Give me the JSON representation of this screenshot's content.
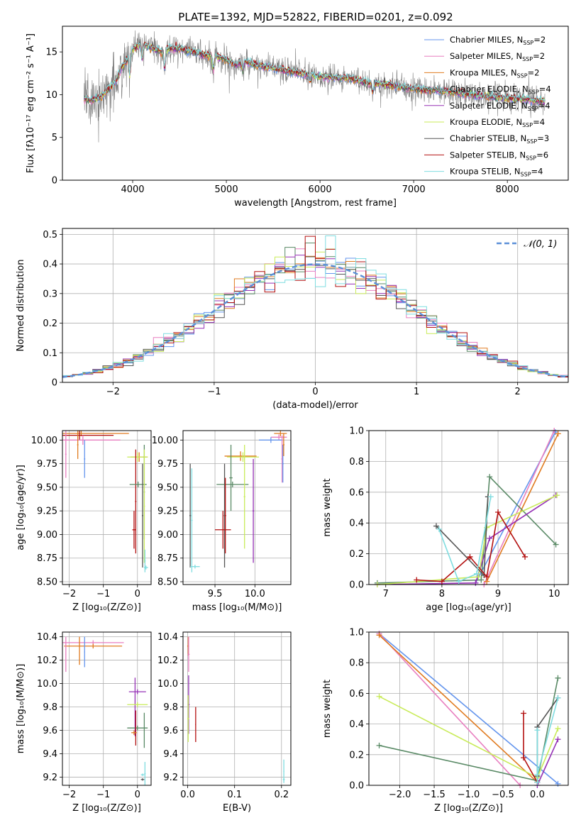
{
  "figure": {
    "title": "PLATE=1392, MJD=52822, FIBERID=0201, z=0.092"
  },
  "colors": {
    "cm": "#6495ed",
    "sm": "#e87fc0",
    "km": "#e07b20",
    "ce": "#5a8a66",
    "se": "#9531b5",
    "ke": "#c9eb5a",
    "cs": "#555555",
    "ss": "#b31010",
    "ks": "#7fdde0",
    "data": "#808080",
    "gauss": "#5b8fd8"
  },
  "chart_data": [
    {
      "id": "spectrum",
      "type": "line",
      "xlabel": "wavelength [Angstrom, rest frame]",
      "ylabel": "Flux [fλ10⁻¹⁷ erg cm⁻² s⁻¹ A⁻¹]",
      "xlim": [
        3250,
        8650
      ],
      "ylim": [
        0,
        18
      ],
      "xticks": [
        4000,
        5000,
        6000,
        7000,
        8000
      ],
      "yticks": [
        0,
        5,
        10,
        15
      ],
      "legend_position": "top-right",
      "grid": false,
      "legend": [
        {
          "key": "cm",
          "lib": "Chabrier MILES, N",
          "n": "2"
        },
        {
          "key": "sm",
          "lib": "Salpeter MILES, N",
          "n": "2"
        },
        {
          "key": "km",
          "lib": "Kroupa MILES, N",
          "n": "2"
        },
        {
          "key": "ce",
          "lib": "Chabrier ELODIE, N",
          "n": "4"
        },
        {
          "key": "se",
          "lib": "Salpeter ELODIE, N",
          "n": "4"
        },
        {
          "key": "ke",
          "lib": "Kroupa ELODIE, N",
          "n": "4"
        },
        {
          "key": "cs",
          "lib": "Chabrier STELIB, N",
          "n": "3"
        },
        {
          "key": "ss",
          "lib": "Salpeter STELIB, N",
          "n": "6"
        },
        {
          "key": "ks",
          "lib": "Kroupa STELIB, N",
          "n": "4"
        }
      ],
      "legend_sub": "SSP",
      "continuum": [
        [
          3480,
          9.6
        ],
        [
          3550,
          9.3
        ],
        [
          3650,
          9.7
        ],
        [
          3750,
          10.7
        ],
        [
          3820,
          11.5
        ],
        [
          3880,
          13.2
        ],
        [
          3950,
          14.2
        ],
        [
          4000,
          15.4
        ],
        [
          4100,
          16.0
        ],
        [
          4200,
          15.5
        ],
        [
          4300,
          15.0
        ],
        [
          4400,
          15.4
        ],
        [
          4500,
          15.4
        ],
        [
          4600,
          15.1
        ],
        [
          4700,
          14.8
        ],
        [
          4800,
          14.6
        ],
        [
          4900,
          14.4
        ],
        [
          5000,
          14.1
        ],
        [
          5100,
          13.5
        ],
        [
          5200,
          13.9
        ],
        [
          5300,
          13.5
        ],
        [
          5500,
          13.1
        ],
        [
          5700,
          12.7
        ],
        [
          5900,
          12.3
        ],
        [
          6100,
          12.0
        ],
        [
          6300,
          11.9
        ],
        [
          6500,
          11.4
        ],
        [
          6700,
          11.2
        ],
        [
          6900,
          10.8
        ],
        [
          7100,
          10.6
        ],
        [
          7300,
          10.4
        ],
        [
          7500,
          10.2
        ],
        [
          7700,
          9.9
        ],
        [
          7900,
          9.7
        ],
        [
          8100,
          9.5
        ],
        [
          8300,
          9.3
        ],
        [
          8400,
          9.2
        ]
      ],
      "dips": [
        [
          3970,
          -2.5
        ],
        [
          4102,
          -2.0
        ],
        [
          4340,
          -2.2
        ],
        [
          4861,
          -1.5
        ],
        [
          5175,
          -1.0
        ],
        [
          5893,
          -0.8
        ],
        [
          6563,
          -1.0
        ]
      ]
    },
    {
      "id": "residuals",
      "type": "histogram",
      "xlabel": "(data-model)/error",
      "ylabel": "Normed distribution",
      "xlim": [
        -2.5,
        2.5
      ],
      "ylim": [
        0,
        0.52
      ],
      "xticks": [
        -2,
        -1,
        0,
        1,
        2
      ],
      "yticks": [
        0,
        0.1,
        0.2,
        0.3,
        0.4,
        0.5
      ],
      "grid": true,
      "legend_position": "top-right",
      "gaussian_label": "𝒩(0, 1)",
      "bin_width": 0.1
    },
    {
      "id": "age_vs_Z",
      "type": "errorbar",
      "xlabel": "Z [log₁₀(Z/Z⊙)]",
      "ylabel": "age  [log₁₀(age/yr)]",
      "xlim": [
        -2.2,
        0.4
      ],
      "ylim": [
        8.47,
        10.1
      ],
      "xticks": [
        -2,
        -1,
        0
      ],
      "xticklabels": [
        "−2",
        "−1",
        "0"
      ],
      "yticks": [
        8.5,
        8.75,
        9.0,
        9.25,
        9.5,
        9.75,
        10.0
      ],
      "yticklabels": [
        "8.50",
        "8.75",
        "9.00",
        "9.25",
        "9.50",
        "9.75",
        "10.00"
      ],
      "grid": true,
      "points": [
        {
          "c": "km",
          "x": -1.65,
          "xerr": 1.4,
          "y": 10.07,
          "yerr": 0.03
        },
        {
          "c": "ss",
          "x": -1.7,
          "xerr": 1.0,
          "y": 10.05,
          "yerr": 0.05
        },
        {
          "c": "sm",
          "x": -1.6,
          "xerr": 1.1,
          "y": 10.0,
          "yerr": 0.05
        },
        {
          "c": "sm",
          "x": -2.1,
          "xerr": 0.02,
          "y": 9.85,
          "yerr": 0.25
        },
        {
          "c": "km",
          "x": -1.75,
          "xerr": 0.02,
          "y": 9.95,
          "yerr": 0.15
        },
        {
          "c": "cm",
          "x": -1.55,
          "xerr": 0.02,
          "y": 9.8,
          "yerr": 0.2
        },
        {
          "c": "km",
          "x": 0.05,
          "xerr": 0.25,
          "y": 9.82,
          "yerr": 0.05
        },
        {
          "c": "ke",
          "x": 0.0,
          "xerr": 0.3,
          "y": 9.82,
          "yerr": 0.05
        },
        {
          "c": "ce",
          "x": 0.2,
          "xerr": 0.02,
          "y": 9.45,
          "yerr": 0.5
        },
        {
          "c": "ss",
          "x": -0.05,
          "xerr": 0.02,
          "y": 9.35,
          "yerr": 0.55
        },
        {
          "c": "ss",
          "x": -0.1,
          "xerr": 0.05,
          "y": 9.05,
          "yerr": 0.2
        },
        {
          "c": "ce",
          "x": 0.02,
          "xerr": 0.25,
          "y": 9.53,
          "yerr": 0.03
        },
        {
          "c": "cs",
          "x": 0.15,
          "xerr": 0.02,
          "y": 9.2,
          "yerr": 0.55
        },
        {
          "c": "ke",
          "x": 0.2,
          "xerr": 0.02,
          "y": 9.3,
          "yerr": 0.6
        },
        {
          "c": "ks",
          "x": 0.22,
          "xerr": 0.02,
          "y": 8.72,
          "yerr": 0.12
        },
        {
          "c": "ks",
          "x": 0.25,
          "xerr": 0.06,
          "y": 8.65,
          "yerr": 0.02
        }
      ]
    },
    {
      "id": "age_vs_mass",
      "type": "errorbar",
      "xlabel": "mass [log₁₀(M/M⊙)]",
      "ylabel": "",
      "xlim": [
        9.1,
        10.45
      ],
      "ylim": [
        8.47,
        10.1
      ],
      "xticks": [
        9.5,
        10.0
      ],
      "xticklabels": [
        "9.5",
        "10.0"
      ],
      "yticks": [
        8.5,
        8.75,
        9.0,
        9.25,
        9.5,
        9.75,
        10.0
      ],
      "yticklabels": [
        "8.50",
        "8.75",
        "9.00",
        "9.25",
        "9.50",
        "9.75",
        "10.00"
      ],
      "grid": true,
      "points": [
        {
          "c": "km",
          "x": 10.32,
          "xerr": 0.08,
          "y": 10.07,
          "yerr": 0.03
        },
        {
          "c": "sm",
          "x": 10.3,
          "xerr": 0.1,
          "y": 10.03,
          "yerr": 0.03
        },
        {
          "c": "cm",
          "x": 10.2,
          "xerr": 0.15,
          "y": 10.0,
          "yerr": 0.03
        },
        {
          "c": "sm",
          "x": 10.34,
          "xerr": 0.01,
          "y": 9.8,
          "yerr": 0.25
        },
        {
          "c": "cm",
          "x": 10.35,
          "xerr": 0.01,
          "y": 9.75,
          "yerr": 0.2
        },
        {
          "c": "km",
          "x": 10.36,
          "xerr": 0.01,
          "y": 9.95,
          "yerr": 0.12
        },
        {
          "c": "km",
          "x": 9.82,
          "xerr": 0.2,
          "y": 9.83,
          "yerr": 0.05
        },
        {
          "c": "ke",
          "x": 9.85,
          "xerr": 0.2,
          "y": 9.82,
          "yerr": 0.05
        },
        {
          "c": "ce",
          "x": 9.7,
          "xerr": 0.02,
          "y": 9.6,
          "yerr": 0.35
        },
        {
          "c": "ce",
          "x": 9.72,
          "xerr": 0.2,
          "y": 9.53,
          "yerr": 0.03
        },
        {
          "c": "ke",
          "x": 9.87,
          "xerr": 0.01,
          "y": 9.4,
          "yerr": 0.55
        },
        {
          "c": "se",
          "x": 9.98,
          "xerr": 0.01,
          "y": 9.25,
          "yerr": 0.55
        },
        {
          "c": "cs",
          "x": 9.62,
          "xerr": 0.01,
          "y": 9.2,
          "yerr": 0.55
        },
        {
          "c": "ss",
          "x": 9.6,
          "xerr": 0.1,
          "y": 9.05,
          "yerr": 0.2
        },
        {
          "c": "ss",
          "x": 9.63,
          "xerr": 0.01,
          "y": 9.2,
          "yerr": 0.4
        },
        {
          "c": "cs",
          "x": 9.19,
          "xerr": 0.01,
          "y": 9.2,
          "yerr": 0.55
        },
        {
          "c": "ks",
          "x": 9.21,
          "xerr": 0.01,
          "y": 9.15,
          "yerr": 0.55
        },
        {
          "c": "ks",
          "x": 9.25,
          "xerr": 0.06,
          "y": 8.66,
          "yerr": 0.02
        }
      ]
    },
    {
      "id": "weight_vs_age",
      "type": "line",
      "xlabel": "age  [log₁₀(age/yr)]",
      "ylabel": "mass weight",
      "xlim": [
        6.7,
        10.25
      ],
      "ylim": [
        0,
        1.0
      ],
      "xticks": [
        7,
        8,
        9,
        10
      ],
      "xticklabels": [
        "7",
        "8",
        "9",
        "10"
      ],
      "yticks": [
        0,
        0.2,
        0.4,
        0.6,
        0.8,
        1.0
      ],
      "yticklabels": [
        "0.0",
        "0.2",
        "0.4",
        "0.6",
        "0.8",
        "1.0"
      ],
      "grid": true,
      "series": [
        {
          "c": "cm",
          "x": [
            8.6,
            10.02
          ],
          "y": [
            0.01,
            0.99
          ]
        },
        {
          "c": "sm",
          "x": [
            8.75,
            10.0
          ],
          "y": [
            0.0,
            1.0
          ]
        },
        {
          "c": "km",
          "x": [
            8.8,
            10.07
          ],
          "y": [
            0.02,
            0.98
          ]
        },
        {
          "c": "ce",
          "x": [
            6.85,
            8.7,
            8.85,
            10.03
          ],
          "y": [
            0.01,
            0.03,
            0.7,
            0.26
          ]
        },
        {
          "c": "se",
          "x": [
            6.85,
            8.6,
            8.85,
            10.03
          ],
          "y": [
            0.0,
            0.01,
            0.3,
            0.58
          ]
        },
        {
          "c": "ke",
          "x": [
            6.85,
            8.65,
            8.8,
            10.05
          ],
          "y": [
            0.0,
            0.05,
            0.37,
            0.58
          ]
        },
        {
          "c": "cs",
          "x": [
            7.9,
            8.75,
            8.82
          ],
          "y": [
            0.38,
            0.06,
            0.57
          ]
        },
        {
          "c": "ss",
          "x": [
            7.55,
            8.0,
            8.5,
            8.8,
            9.0,
            9.48
          ],
          "y": [
            0.03,
            0.02,
            0.18,
            0.05,
            0.47,
            0.18
          ]
        },
        {
          "c": "ks",
          "x": [
            7.95,
            8.3,
            8.62,
            8.87
          ],
          "y": [
            0.36,
            0.02,
            0.07,
            0.57
          ]
        }
      ]
    },
    {
      "id": "mass_vs_Z",
      "type": "errorbar",
      "xlabel": "Z [log₁₀(Z/Z⊙)]",
      "ylabel": "mass [log₁₀(M/M⊙)]",
      "xlim": [
        -2.2,
        0.4
      ],
      "ylim": [
        9.13,
        10.44
      ],
      "xticks": [
        -2,
        -1,
        0
      ],
      "xticklabels": [
        "−2",
        "−1",
        "0"
      ],
      "yticks": [
        9.2,
        9.4,
        9.6,
        9.8,
        10.0,
        10.2,
        10.4
      ],
      "yticklabels": [
        "9.2",
        "9.4",
        "9.6",
        "9.8",
        "10.0",
        "10.2",
        "10.4"
      ],
      "grid": true,
      "points": [
        {
          "c": "sm",
          "x": -1.3,
          "xerr": 0.9,
          "y": 10.35,
          "yerr": 0.02
        },
        {
          "c": "km",
          "x": -1.3,
          "xerr": 0.85,
          "y": 10.32,
          "yerr": 0.02
        },
        {
          "c": "sm",
          "x": -2.1,
          "xerr": 0.01,
          "y": 10.25,
          "yerr": 0.15
        },
        {
          "c": "km",
          "x": -1.7,
          "xerr": 0.01,
          "y": 10.28,
          "yerr": 0.12
        },
        {
          "c": "cm",
          "x": -1.55,
          "xerr": 0.01,
          "y": 10.27,
          "yerr": 0.13
        },
        {
          "c": "se",
          "x": 0.0,
          "xerr": 0.25,
          "y": 9.93,
          "yerr": 0.02
        },
        {
          "c": "se",
          "x": -0.07,
          "xerr": 0.01,
          "y": 9.8,
          "yerr": 0.25
        },
        {
          "c": "ke",
          "x": 0.0,
          "xerr": 0.3,
          "y": 9.82,
          "yerr": 0.02
        },
        {
          "c": "ce",
          "x": 0.0,
          "xerr": 0.3,
          "y": 9.62,
          "yerr": 0.02
        },
        {
          "c": "ce",
          "x": 0.2,
          "xerr": 0.01,
          "y": 9.6,
          "yerr": 0.15
        },
        {
          "c": "ss",
          "x": -0.05,
          "xerr": 0.01,
          "y": 9.62,
          "yerr": 0.15
        },
        {
          "c": "km",
          "x": -0.1,
          "xerr": 0.08,
          "y": 9.58,
          "yerr": 0.02
        },
        {
          "c": "cs",
          "x": 0.15,
          "xerr": 0.05,
          "y": 9.18,
          "yerr": 0.01
        },
        {
          "c": "ks",
          "x": 0.22,
          "xerr": 0.02,
          "y": 9.23,
          "yerr": 0.1
        },
        {
          "c": "ks",
          "x": 0.15,
          "xerr": 0.05,
          "y": 9.22,
          "yerr": 0.01
        }
      ]
    },
    {
      "id": "mass_vs_ebv",
      "type": "errorbar",
      "xlabel": "E(B-V)",
      "ylabel": "",
      "xlim": [
        -0.01,
        0.22
      ],
      "ylim": [
        9.13,
        10.44
      ],
      "xticks": [
        0,
        0.1,
        0.2
      ],
      "xticklabels": [
        "0.0",
        "0.1",
        "0.2"
      ],
      "yticks": [
        9.2,
        9.4,
        9.6,
        9.8,
        10.0,
        10.2,
        10.4
      ],
      "yticklabels": [
        "9.2",
        "9.4",
        "9.6",
        "9.8",
        "10.0",
        "10.2",
        "10.4"
      ],
      "grid": true,
      "points": [
        {
          "c": "km",
          "x": 0.001,
          "xerr": 0.002,
          "y": 10.32,
          "yerr": 0.08
        },
        {
          "c": "sm",
          "x": 0.002,
          "xerr": 0.002,
          "y": 10.25,
          "yerr": 0.15
        },
        {
          "c": "se",
          "x": 0.002,
          "xerr": 0.002,
          "y": 9.82,
          "yerr": 0.25
        },
        {
          "c": "ke",
          "x": 0.001,
          "xerr": 0.002,
          "y": 9.7,
          "yerr": 0.2
        },
        {
          "c": "ss",
          "x": 0.017,
          "xerr": 0.001,
          "y": 9.65,
          "yerr": 0.15
        },
        {
          "c": "ks",
          "x": 0.205,
          "xerr": 0.001,
          "y": 9.25,
          "yerr": 0.1
        },
        {
          "c": "ks",
          "x": 0.205,
          "xerr": 0.002,
          "y": 9.18,
          "yerr": 0.01
        }
      ]
    },
    {
      "id": "weight_vs_Z",
      "type": "line",
      "xlabel": "Z [log₁₀(Z/Z⊙)]",
      "ylabel": "mass weight",
      "xlim": [
        -2.45,
        0.45
      ],
      "ylim": [
        0,
        1.0
      ],
      "xticks": [
        -2.0,
        -1.5,
        -1.0,
        -0.5,
        0.0
      ],
      "xticklabels": [
        "−2.0",
        "−1.5",
        "−1.0",
        "−0.5",
        "0.0"
      ],
      "yticks": [
        0,
        0.2,
        0.4,
        0.6,
        0.8,
        1.0
      ],
      "yticklabels": [
        "0.0",
        "0.2",
        "0.4",
        "0.6",
        "0.8",
        "1.0"
      ],
      "grid": true,
      "series": [
        {
          "c": "cm",
          "x": [
            -2.3,
            0.3
          ],
          "y": [
            0.99,
            0.01
          ]
        },
        {
          "c": "sm",
          "x": [
            -2.3,
            -0.25
          ],
          "y": [
            0.99,
            0.0
          ]
        },
        {
          "c": "km",
          "x": [
            -2.3,
            0.0
          ],
          "y": [
            0.98,
            0.02
          ]
        },
        {
          "c": "ce",
          "x": [
            -2.3,
            0.0,
            0.3
          ],
          "y": [
            0.26,
            0.03,
            0.7
          ]
        },
        {
          "c": "se",
          "x": [
            0.0,
            0.3
          ],
          "y": [
            0.0,
            0.3
          ]
        },
        {
          "c": "ke",
          "x": [
            -2.3,
            0.0,
            0.3
          ],
          "y": [
            0.58,
            0.05,
            0.37
          ]
        },
        {
          "c": "cs",
          "x": [
            0.0,
            0.0,
            0.3
          ],
          "y": [
            0.06,
            0.38,
            0.57
          ]
        },
        {
          "c": "ss",
          "x": [
            -0.2,
            -0.2,
            0.0
          ],
          "y": [
            0.47,
            0.18,
            0.02
          ]
        },
        {
          "c": "ks",
          "x": [
            0.0,
            0.0,
            0.0,
            0.3
          ],
          "y": [
            0.02,
            0.36,
            0.07,
            0.57
          ]
        }
      ]
    }
  ]
}
